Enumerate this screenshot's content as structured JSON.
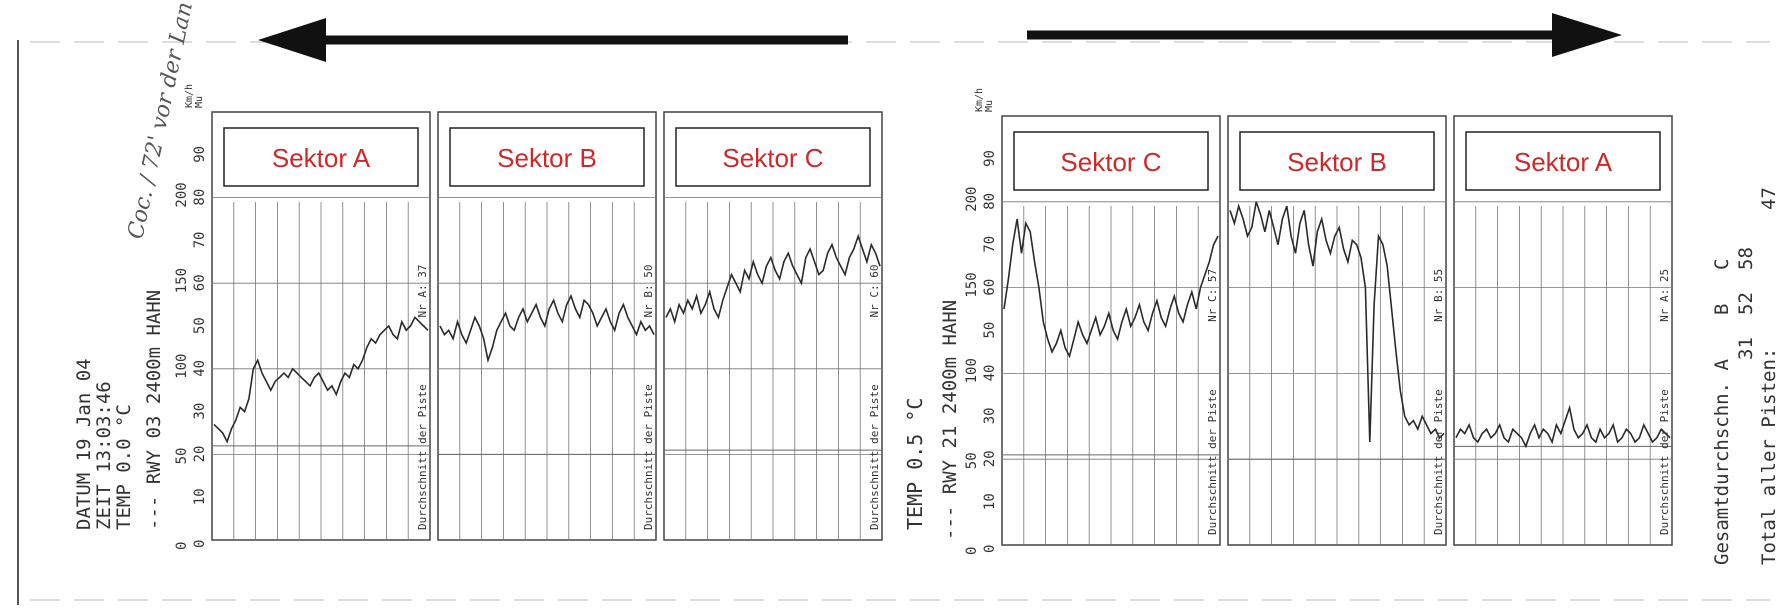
{
  "colors": {
    "paper": "#ffffff",
    "grid": "#777777",
    "trace": "#2a2a2a",
    "sektor_label": "#cc2a2a",
    "arrow": "#111111"
  },
  "left_header": {
    "datum": "DATUM  19 Jan 04",
    "zeit": "ZEIT   13:03:46",
    "temp": "TEMP    0.0 °C",
    "rwy": "--- RWY 03  2400m  HAHN",
    "handwriting": "Coc. / 72' vor der Lan"
  },
  "middle_temp": "TEMP   0.5 °C",
  "right_header": {
    "rwy": "--- RWY 21  2400m  HAHN"
  },
  "summary": {
    "gesamt": "Gesamtdurchschn. A",
    "gesamt_a": "31",
    "b_label": "B",
    "b_value": "52",
    "c_label": "C",
    "c_value": "58",
    "total_label": "Total aller Pisten:",
    "total_value": "47"
  },
  "arrows": {
    "left": "left-arrow",
    "right": "right-arrow"
  },
  "chart_data": [
    {
      "type": "line",
      "runway": "RWY 03",
      "y_ticks_left": [
        "0",
        "10",
        "20",
        "30",
        "40",
        "50",
        "60",
        "70",
        "80",
        "90"
      ],
      "y_ticks_right": [
        "0",
        "",
        "50",
        "",
        "100",
        "",
        "150",
        "",
        "200",
        ""
      ],
      "y_units": [
        "Km/h",
        "Mu"
      ],
      "ylim": [
        0,
        100
      ],
      "panels": [
        {
          "label": "Sektor A",
          "avg_text": "Durchschnitt der Piste",
          "nr_text": "Nr A: 37",
          "series": [
            27,
            26,
            25,
            23,
            26,
            28,
            31,
            30,
            33,
            40,
            42,
            39,
            37,
            35,
            37,
            38,
            39,
            38,
            40,
            39,
            38,
            37,
            36,
            38,
            39,
            37,
            35,
            36,
            34,
            37,
            39,
            38,
            41,
            40,
            42,
            45,
            47,
            46,
            48,
            49,
            50,
            48,
            47,
            51,
            49,
            50,
            52,
            51,
            50,
            49
          ],
          "avg_line": 22
        },
        {
          "label": "Sektor B",
          "avg_text": "Durchschnitt der Piste",
          "nr_text": "Nr B: 50",
          "series": [
            50,
            48,
            49,
            47,
            51,
            48,
            46,
            49,
            52,
            50,
            47,
            42,
            45,
            49,
            51,
            53,
            50,
            49,
            52,
            54,
            51,
            53,
            55,
            52,
            50,
            54,
            56,
            53,
            51,
            55,
            57,
            54,
            52,
            56,
            55,
            53,
            50,
            52,
            54,
            51,
            49,
            53,
            55,
            52,
            50,
            48,
            51,
            49,
            50,
            48
          ],
          "avg_line": 20
        },
        {
          "label": "Sektor C",
          "avg_text": "Durchschnitt der Piste",
          "nr_text": "Nr C: 60",
          "series": [
            52,
            54,
            51,
            55,
            53,
            56,
            54,
            57,
            53,
            55,
            58,
            54,
            52,
            56,
            59,
            62,
            60,
            58,
            63,
            61,
            65,
            62,
            60,
            64,
            66,
            63,
            61,
            65,
            67,
            64,
            62,
            60,
            66,
            68,
            65,
            62,
            63,
            67,
            69,
            66,
            64,
            62,
            66,
            68,
            71,
            68,
            65,
            69,
            67,
            64
          ],
          "avg_line": 21
        }
      ]
    },
    {
      "type": "line",
      "runway": "RWY 21",
      "y_ticks_left": [
        "0",
        "10",
        "20",
        "30",
        "40",
        "50",
        "60",
        "70",
        "80",
        "90"
      ],
      "y_ticks_right": [
        "0",
        "",
        "50",
        "",
        "100",
        "",
        "150",
        "",
        "200",
        ""
      ],
      "y_units": [
        "Km/h",
        "Mu"
      ],
      "ylim": [
        0,
        100
      ],
      "panels": [
        {
          "label": "Sektor C",
          "avg_text": "Durchschnitt der Piste",
          "nr_text": "Nr C: 57",
          "series": [
            55,
            62,
            70,
            76,
            68,
            75,
            73,
            66,
            60,
            52,
            48,
            45,
            47,
            50,
            46,
            44,
            48,
            52,
            49,
            47,
            50,
            53,
            49,
            51,
            54,
            50,
            48,
            52,
            55,
            51,
            53,
            56,
            52,
            50,
            54,
            57,
            53,
            51,
            55,
            58,
            54,
            52,
            56,
            59,
            55,
            60,
            63,
            66,
            70,
            72
          ],
          "avg_line": 21
        },
        {
          "label": "Sektor B",
          "avg_text": "Durchschnitt der Piste",
          "nr_text": "Nr B: 55",
          "series": [
            78,
            75,
            79,
            76,
            72,
            74,
            80,
            77,
            73,
            78,
            74,
            70,
            76,
            79,
            72,
            68,
            75,
            78,
            70,
            65,
            73,
            76,
            71,
            68,
            72,
            74,
            69,
            66,
            71,
            70,
            67,
            60,
            24,
            56,
            72,
            70,
            65,
            55,
            45,
            36,
            30,
            28,
            29,
            27,
            30,
            28,
            26,
            27,
            25,
            26
          ],
          "avg_line": 20
        },
        {
          "label": "Sektor A",
          "avg_text": "Durchschnitt der Piste",
          "nr_text": "Nr A: 25",
          "series": [
            25,
            27,
            26,
            28,
            25,
            24,
            26,
            27,
            25,
            26,
            28,
            25,
            24,
            27,
            26,
            25,
            23,
            26,
            28,
            25,
            27,
            26,
            24,
            28,
            26,
            29,
            32,
            27,
            25,
            26,
            28,
            25,
            24,
            27,
            25,
            26,
            28,
            24,
            25,
            27,
            26,
            24,
            25,
            28,
            26,
            24,
            25,
            27,
            26,
            25
          ],
          "avg_line": 23
        }
      ]
    }
  ]
}
